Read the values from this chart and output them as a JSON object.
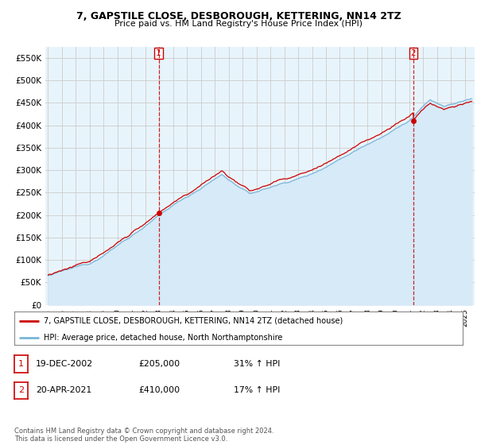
{
  "title": "7, GAPSTILE CLOSE, DESBOROUGH, KETTERING, NN14 2TZ",
  "subtitle": "Price paid vs. HM Land Registry's House Price Index (HPI)",
  "legend_line1": "7, GAPSTILE CLOSE, DESBOROUGH, KETTERING, NN14 2TZ (detached house)",
  "legend_line2": "HPI: Average price, detached house, North Northamptonshire",
  "transaction1_date": "19-DEC-2002",
  "transaction1_price": "£205,000",
  "transaction1_hpi": "31% ↑ HPI",
  "transaction2_date": "20-APR-2021",
  "transaction2_price": "£410,000",
  "transaction2_hpi": "17% ↑ HPI",
  "footer": "Contains HM Land Registry data © Crown copyright and database right 2024.\nThis data is licensed under the Open Government Licence v3.0.",
  "hpi_color": "#7ab5d8",
  "hpi_fill_color": "#d6eaf8",
  "price_color": "#cc0000",
  "marker_color": "#cc0000",
  "vline_color": "#cc0000",
  "grid_color": "#cccccc",
  "bg_color": "#ffffff",
  "plot_bg_color": "#e8f4fb",
  "ylim": [
    0,
    575000
  ],
  "yticks": [
    0,
    50000,
    100000,
    150000,
    200000,
    250000,
    300000,
    350000,
    400000,
    450000,
    500000,
    550000
  ],
  "t1_x": 2002.96,
  "t1_y": 205000,
  "t2_x": 2021.29,
  "t2_y": 410000,
  "xlim_start": 1994.8,
  "xlim_end": 2025.7
}
